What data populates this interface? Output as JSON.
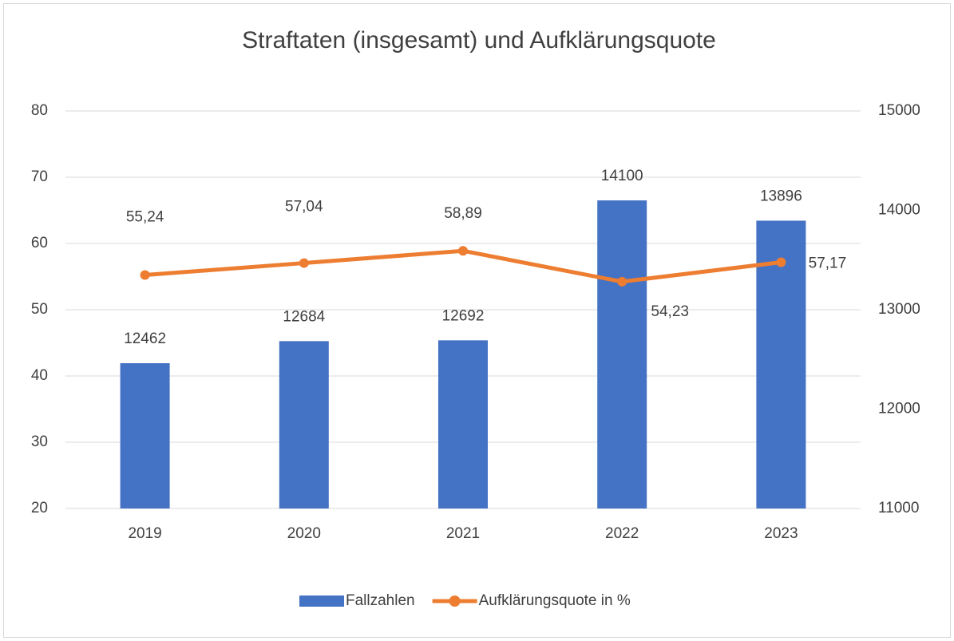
{
  "chart_data": {
    "type": "bar-line",
    "title": "Straftaten (insgesamt) und Aufklärungsquote",
    "categories": [
      "2019",
      "2020",
      "2021",
      "2022",
      "2023"
    ],
    "series": [
      {
        "name": "Fallzahlen",
        "type": "bar",
        "axis": "y2",
        "color": "#4472c4",
        "values": [
          12462,
          12684,
          12692,
          14100,
          13896
        ]
      },
      {
        "name": "Aufklärungsquote in %",
        "type": "line",
        "axis": "y",
        "color": "#ed7d31",
        "values": [
          55.24,
          57.04,
          58.89,
          54.23,
          57.17
        ],
        "value_labels": [
          "55,24",
          "57,04",
          "58,89",
          "54,23",
          "57,17"
        ]
      }
    ],
    "ylim": [
      20,
      80
    ],
    "yticks": [
      20,
      30,
      40,
      50,
      60,
      70,
      80
    ],
    "y2lim": [
      11000,
      15000
    ],
    "y2ticks": [
      11000,
      12000,
      13000,
      14000,
      15000
    ],
    "grid": true,
    "legend": "bottom"
  }
}
